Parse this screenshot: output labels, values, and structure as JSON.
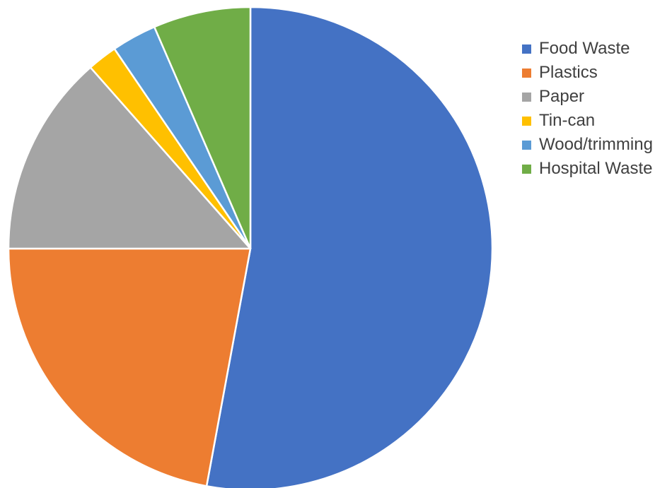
{
  "chart_data": {
    "type": "pie",
    "title": "",
    "legend_position": "right",
    "slices": [
      {
        "label": "Food Waste",
        "value": 52.9,
        "color": "#4472C4"
      },
      {
        "label": "Plastics",
        "value": 22.1,
        "color": "#ED7D31"
      },
      {
        "label": "Paper",
        "value": 13.5,
        "color": "#A5A5A5"
      },
      {
        "label": "Tin-can",
        "value": 2.0,
        "color": "#FFC000"
      },
      {
        "label": "Wood/trimming",
        "value": 3.0,
        "color": "#5B9BD5"
      },
      {
        "label": "Hospital Waste",
        "value": 6.5,
        "color": "#70AD47"
      }
    ]
  }
}
